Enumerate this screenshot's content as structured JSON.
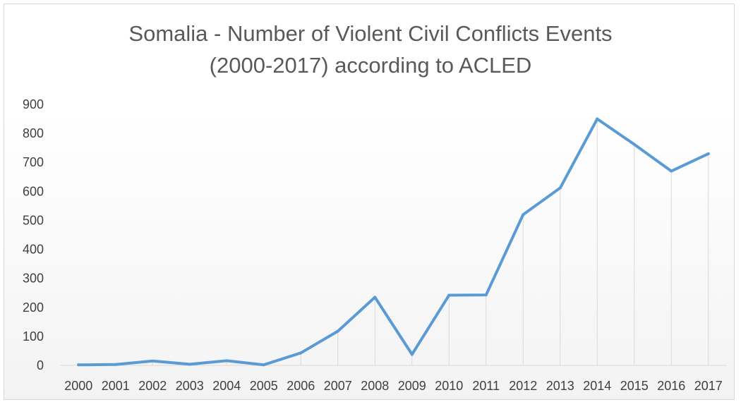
{
  "chart_data": {
    "type": "line",
    "title_lines": [
      "Somalia - Number of Violent Civil Conflicts Events",
      "(2000-2017) according to ACLED"
    ],
    "xlabel": "",
    "ylabel": "",
    "categories": [
      "2000",
      "2001",
      "2002",
      "2003",
      "2004",
      "2005",
      "2006",
      "2007",
      "2008",
      "2009",
      "2010",
      "2011",
      "2012",
      "2013",
      "2014",
      "2015",
      "2016",
      "2017"
    ],
    "series": [
      {
        "values": [
          2,
          3,
          15,
          4,
          16,
          2,
          43,
          118,
          235,
          38,
          242,
          243,
          520,
          612,
          850,
          762,
          670,
          730
        ],
        "color": "#5b9bd5"
      }
    ],
    "ylim": [
      0,
      900
    ],
    "yticks": [
      0,
      100,
      200,
      300,
      400,
      500,
      600,
      700,
      800,
      900
    ],
    "grid": "vertical drop lines at each point",
    "legend": "none"
  }
}
